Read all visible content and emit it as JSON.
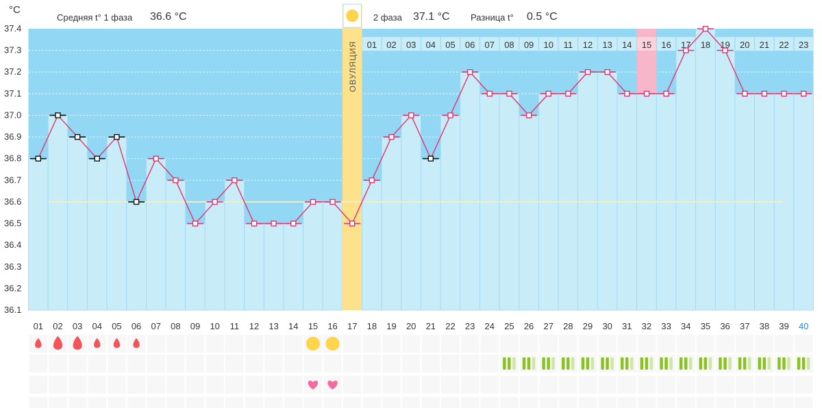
{
  "header": {
    "unit": "°C",
    "phase1_label": "Средняя t° 1 фаза",
    "phase1_value": "36.6 °C",
    "phase2_label": "2 фаза",
    "phase2_value": "37.1 °C",
    "diff_label": "Разница t°",
    "diff_value": "0.5 °C"
  },
  "colors": {
    "sky": "#92d7f3",
    "bar": "#c8ecf8",
    "bar_edge": "#9ed6ef",
    "line": "#e3326d",
    "phase1_marker": "#111111",
    "ovulation": "#fde28b",
    "highlight": "#f7b6c9",
    "average_line": "#f3eec0",
    "blood": "#f2545b",
    "sun": "#fdd44a",
    "heart": "#f36aa0",
    "discharge_dark": "#8ac321",
    "discharge_light": "#cfe6a4",
    "day_link": "#2a7fd4"
  },
  "chart_data": {
    "type": "line",
    "xlabel": "",
    "ylabel": "°C",
    "ylim": [
      36.1,
      37.4
    ],
    "yticks": [
      "37.4",
      "37.3",
      "37.2",
      "37.1",
      "37.0",
      "36.9",
      "36.8",
      "36.7",
      "36.6",
      "36.5",
      "36.4",
      "36.3",
      "36.2",
      "36.1"
    ],
    "categories": [
      "01",
      "02",
      "03",
      "04",
      "05",
      "06",
      "07",
      "08",
      "09",
      "10",
      "11",
      "12",
      "13",
      "14",
      "15",
      "16",
      "17",
      "18",
      "19",
      "20",
      "21",
      "22",
      "23",
      "24",
      "25",
      "26",
      "27",
      "28",
      "29",
      "30",
      "31",
      "32",
      "33",
      "34",
      "35",
      "36",
      "37",
      "38",
      "39",
      "40"
    ],
    "values": [
      36.8,
      37.0,
      36.9,
      36.8,
      36.9,
      36.6,
      36.8,
      36.7,
      36.5,
      36.6,
      36.7,
      36.5,
      36.5,
      36.5,
      36.6,
      36.6,
      36.5,
      36.7,
      36.9,
      37.0,
      36.8,
      37.0,
      37.2,
      37.1,
      37.1,
      37.0,
      37.1,
      37.1,
      37.2,
      37.2,
      37.1,
      37.1,
      37.1,
      37.3,
      37.4,
      37.3,
      37.1,
      37.1,
      37.1,
      37.1
    ],
    "phase1_markers": [
      1,
      2,
      3,
      4,
      5,
      6,
      21
    ],
    "phase2_numbers": [
      "01",
      "02",
      "03",
      "04",
      "05",
      "06",
      "07",
      "08",
      "09",
      "10",
      "11",
      "12",
      "13",
      "14",
      "15",
      "16",
      "17",
      "18",
      "19",
      "20",
      "21",
      "22",
      "23"
    ],
    "ovulation_day": 17,
    "ovulation_label": "ОВУЛЯЦИЯ",
    "highlight_day": 32,
    "average_lines": [
      36.6
    ],
    "grid": true,
    "current_day": 40,
    "rows": {
      "menstruation": [
        [
          1,
          "s"
        ],
        [
          2,
          "l"
        ],
        [
          3,
          "l"
        ],
        [
          4,
          "s"
        ],
        [
          5,
          "s"
        ],
        [
          6,
          "s"
        ]
      ],
      "suns": [
        15,
        16
      ],
      "discharge_days": [
        25,
        26,
        27,
        28,
        29,
        30,
        31,
        32,
        33,
        34,
        35,
        36,
        37,
        38,
        39,
        40
      ],
      "hearts": [
        15,
        16
      ]
    }
  }
}
